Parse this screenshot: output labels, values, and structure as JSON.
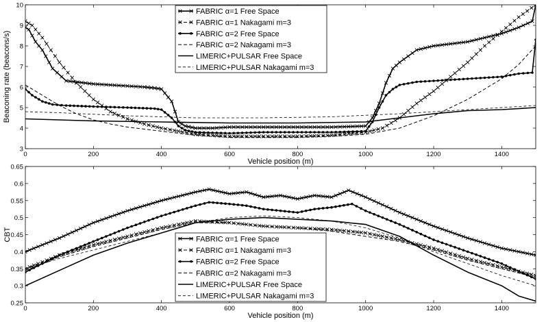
{
  "chart_data": [
    {
      "type": "line",
      "xlabel": "Vehicle position (m)",
      "ylabel": "Beaconing rate (beacons/s)",
      "xlim": [
        0,
        1500
      ],
      "ylim": [
        3,
        10
      ],
      "xticks": [
        "0",
        "200",
        "400",
        "600",
        "800",
        "1000",
        "1200",
        "1400"
      ],
      "yticks": [
        "3",
        "4",
        "5",
        "6",
        "7",
        "8",
        "9",
        "10"
      ],
      "grid": false,
      "legend": "top-center",
      "series": [
        {
          "name": "FABRIC α=1 Free Space",
          "style": "solid-x",
          "x": [
            0,
            10,
            30,
            50,
            80,
            120,
            200,
            300,
            350,
            380,
            400,
            430,
            450,
            470,
            500,
            550,
            600,
            700,
            800,
            900,
            1000,
            1020,
            1040,
            1060,
            1080,
            1100,
            1150,
            1200,
            1300,
            1400,
            1450,
            1490,
            1500
          ],
          "values": [
            8.9,
            8.8,
            8.2,
            7.8,
            6.9,
            6.3,
            6.15,
            6.05,
            6.0,
            5.95,
            5.9,
            5.3,
            4.3,
            4.1,
            4.0,
            4.0,
            4.05,
            4.05,
            4.05,
            4.05,
            4.1,
            4.5,
            5.2,
            6.2,
            6.9,
            7.2,
            7.8,
            8.0,
            8.2,
            8.6,
            8.9,
            9.2,
            10.0
          ]
        },
        {
          "name": "FABRIC α=1 Nakagami m=3",
          "style": "dashed-x",
          "x": [
            0,
            20,
            50,
            100,
            150,
            200,
            250,
            300,
            350,
            400,
            450,
            500,
            600,
            700,
            800,
            900,
            1000,
            1050,
            1100,
            1150,
            1200,
            1250,
            1300,
            1350,
            1400,
            1450,
            1500
          ],
          "values": [
            9.2,
            9.0,
            8.4,
            7.2,
            6.2,
            5.4,
            4.8,
            4.45,
            4.2,
            4.0,
            3.85,
            3.7,
            3.6,
            3.6,
            3.6,
            3.65,
            3.8,
            4.0,
            4.5,
            5.2,
            5.8,
            6.5,
            7.2,
            8.0,
            8.7,
            9.4,
            10.0
          ]
        },
        {
          "name": "FABRIC α=2 Free Space",
          "style": "solid-dot",
          "x": [
            0,
            20,
            50,
            80,
            120,
            200,
            300,
            380,
            400,
            430,
            450,
            470,
            500,
            600,
            700,
            800,
            900,
            1000,
            1020,
            1040,
            1060,
            1080,
            1100,
            1150,
            1200,
            1300,
            1400,
            1450,
            1490,
            1500
          ],
          "values": [
            5.9,
            5.6,
            5.3,
            5.15,
            5.1,
            5.05,
            5.0,
            4.95,
            4.9,
            4.5,
            4.1,
            3.9,
            3.8,
            3.75,
            3.8,
            3.8,
            3.8,
            3.85,
            4.3,
            5.0,
            5.6,
            5.9,
            6.1,
            6.25,
            6.3,
            6.4,
            6.5,
            6.65,
            6.7,
            8.3
          ]
        },
        {
          "name": "FABRIC α=2 Nakagami m=3",
          "style": "dashed",
          "x": [
            0,
            50,
            100,
            150,
            200,
            250,
            300,
            350,
            400,
            450,
            500,
            600,
            700,
            800,
            900,
            1000,
            1050,
            1100,
            1150,
            1200,
            1250,
            1300,
            1350,
            1400,
            1450,
            1500
          ],
          "values": [
            6.1,
            5.6,
            5.1,
            4.7,
            4.4,
            4.2,
            4.05,
            3.95,
            3.85,
            3.75,
            3.65,
            3.55,
            3.55,
            3.55,
            3.6,
            3.7,
            3.85,
            4.0,
            4.3,
            4.6,
            5.0,
            5.4,
            5.9,
            6.4,
            7.1,
            8.0
          ]
        },
        {
          "name": "LIMERIC+PULSAR Free Space",
          "style": "solid",
          "x": [
            0,
            200,
            400,
            600,
            800,
            1000,
            1100,
            1200,
            1300,
            1400,
            1500
          ],
          "values": [
            4.45,
            4.35,
            4.3,
            4.25,
            4.25,
            4.3,
            4.5,
            4.7,
            4.85,
            4.9,
            5.0
          ]
        },
        {
          "name": "LIMERIC+PULSAR Nakagami m=3",
          "style": "dashed-thin",
          "x": [
            0,
            100,
            300,
            500,
            700,
            900,
            1100,
            1300,
            1500
          ],
          "values": [
            4.8,
            4.75,
            4.6,
            4.5,
            4.5,
            4.55,
            4.7,
            4.9,
            5.1
          ]
        }
      ]
    },
    {
      "type": "line",
      "xlabel": "Vehicle position (m)",
      "ylabel": "CBT",
      "xlim": [
        0,
        1500
      ],
      "ylim": [
        0.25,
        0.65
      ],
      "xticks": [
        "0",
        "200",
        "400",
        "600",
        "800",
        "1000",
        "1200",
        "1400"
      ],
      "yticks": [
        "0.25",
        "0.3",
        "0.35",
        "0.4",
        "0.45",
        "0.5",
        "0.55",
        "0.6",
        "0.65"
      ],
      "grid": false,
      "legend": "bottom-center",
      "series": [
        {
          "name": "FABRIC α=1 Free Space",
          "style": "solid-x",
          "x": [
            0,
            100,
            200,
            300,
            400,
            500,
            540,
            600,
            650,
            700,
            750,
            800,
            850,
            900,
            950,
            1000,
            1100,
            1200,
            1300,
            1400,
            1500
          ],
          "values": [
            0.4,
            0.44,
            0.485,
            0.52,
            0.55,
            0.575,
            0.583,
            0.57,
            0.575,
            0.56,
            0.565,
            0.555,
            0.565,
            0.56,
            0.58,
            0.56,
            0.515,
            0.475,
            0.44,
            0.41,
            0.39
          ]
        },
        {
          "name": "FABRIC α=1 Nakagami m=3",
          "style": "dashed-x",
          "x": [
            0,
            100,
            200,
            300,
            400,
            500,
            600,
            700,
            800,
            900,
            1000,
            1100,
            1200,
            1300,
            1400,
            1500
          ],
          "values": [
            0.35,
            0.39,
            0.42,
            0.445,
            0.47,
            0.49,
            0.485,
            0.475,
            0.47,
            0.465,
            0.455,
            0.435,
            0.41,
            0.38,
            0.355,
            0.33
          ]
        },
        {
          "name": "FABRIC α=2 Free Space",
          "style": "solid-dot",
          "x": [
            0,
            100,
            200,
            300,
            400,
            500,
            540,
            600,
            650,
            700,
            750,
            800,
            850,
            900,
            960,
            1000,
            1100,
            1200,
            1300,
            1400,
            1500
          ],
          "values": [
            0.34,
            0.39,
            0.43,
            0.47,
            0.505,
            0.535,
            0.545,
            0.54,
            0.535,
            0.525,
            0.52,
            0.515,
            0.525,
            0.53,
            0.54,
            0.52,
            0.48,
            0.435,
            0.4,
            0.365,
            0.32
          ]
        },
        {
          "name": "FABRIC α=2 Nakagami m=3",
          "style": "dashed",
          "x": [
            0,
            100,
            200,
            300,
            400,
            500,
            600,
            700,
            800,
            900,
            1000,
            1100,
            1200,
            1300,
            1400,
            1500
          ],
          "values": [
            0.345,
            0.385,
            0.415,
            0.44,
            0.465,
            0.485,
            0.485,
            0.475,
            0.47,
            0.46,
            0.445,
            0.43,
            0.405,
            0.375,
            0.35,
            0.325
          ]
        },
        {
          "name": "LIMERIC+PULSAR Free Space",
          "style": "solid",
          "x": [
            0,
            100,
            200,
            300,
            400,
            500,
            600,
            700,
            800,
            900,
            1000,
            1100,
            1200,
            1300,
            1400,
            1450,
            1500
          ],
          "values": [
            0.3,
            0.345,
            0.39,
            0.425,
            0.455,
            0.485,
            0.495,
            0.5,
            0.495,
            0.49,
            0.48,
            0.445,
            0.39,
            0.34,
            0.3,
            0.27,
            0.255
          ]
        },
        {
          "name": "LIMERIC+PULSAR Nakagami m=3",
          "style": "dashed-thin",
          "x": [
            0,
            100,
            200,
            300,
            400,
            500,
            600,
            700,
            800,
            900,
            1000,
            1100,
            1200,
            1300,
            1400,
            1500
          ],
          "values": [
            0.35,
            0.38,
            0.405,
            0.43,
            0.455,
            0.485,
            0.5,
            0.505,
            0.5,
            0.49,
            0.47,
            0.44,
            0.4,
            0.365,
            0.33,
            0.3
          ]
        }
      ]
    }
  ]
}
